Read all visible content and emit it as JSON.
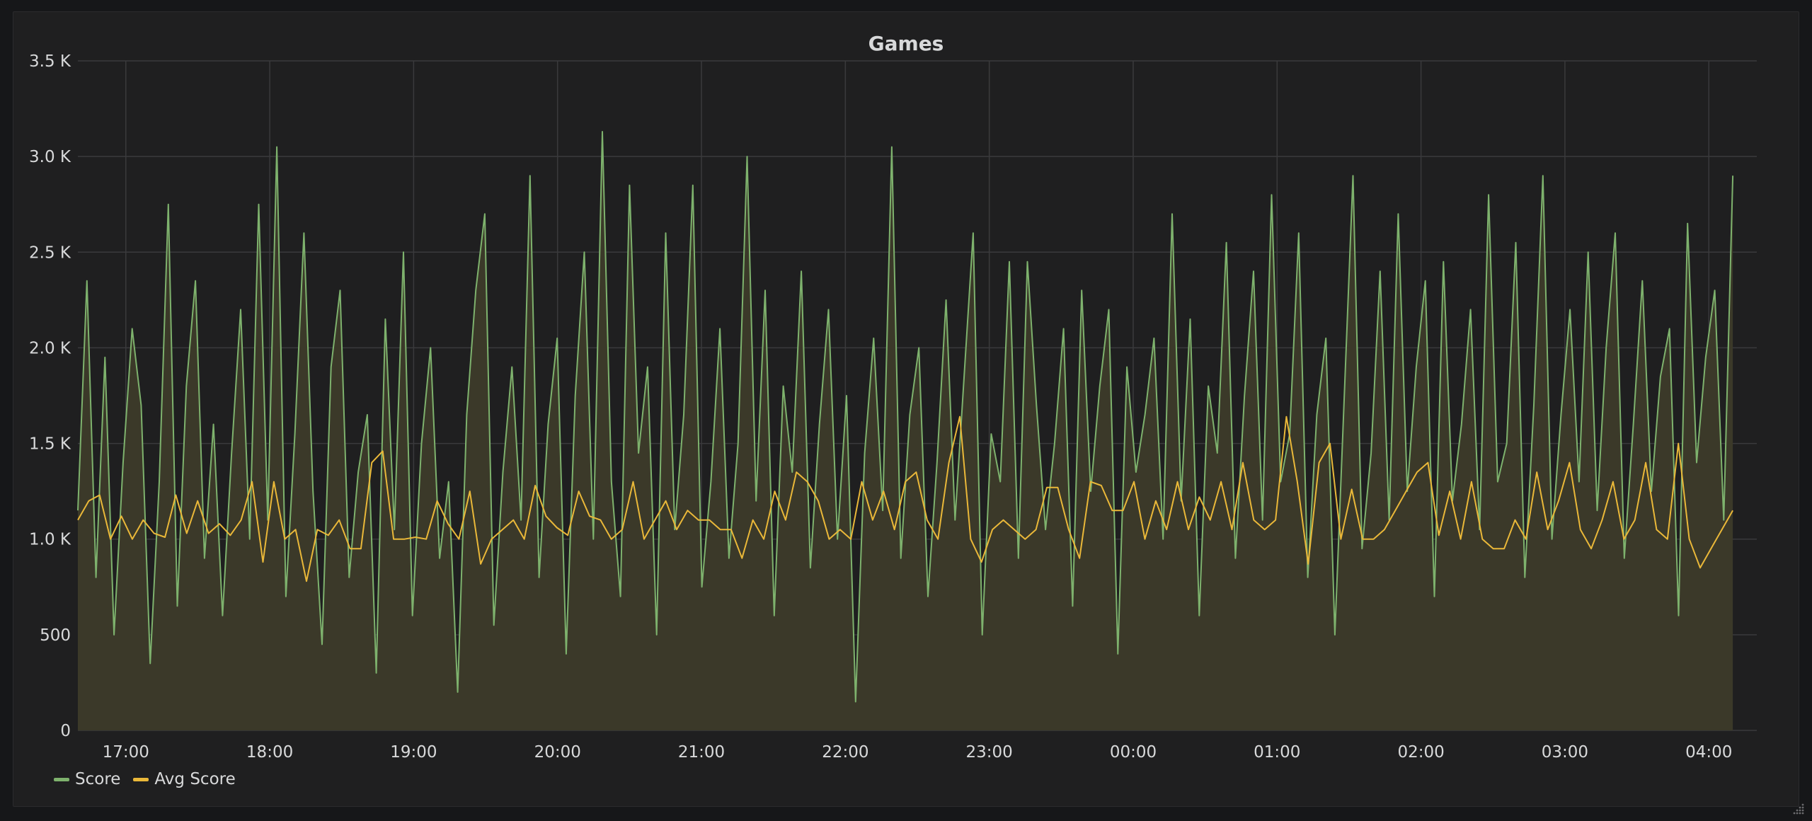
{
  "panel": {
    "title": "Games"
  },
  "colors": {
    "score": "#7eb26d",
    "avg": "#eab839",
    "fill": "#3b3929",
    "grid": "#3a3a3c"
  },
  "icons": {
    "resize": "resize-handle-icon"
  },
  "chart_data": {
    "type": "line",
    "title": "Games",
    "ylim": [
      0,
      3500
    ],
    "yticks": [
      "0",
      "500",
      "1.0 K",
      "1.5 K",
      "2.0 K",
      "2.5 K",
      "3.0 K",
      "3.5 K"
    ],
    "yticks_values": [
      0,
      500,
      1000,
      1500,
      2000,
      2500,
      3000,
      3500
    ],
    "xlim": [
      "16:40",
      "04:20"
    ],
    "xticks": [
      "17:00",
      "18:00",
      "19:00",
      "20:00",
      "21:00",
      "22:00",
      "23:00",
      "00:00",
      "01:00",
      "02:00",
      "03:00",
      "04:00"
    ],
    "grid": true,
    "legend": "bottom-left",
    "series": [
      {
        "name": "Score",
        "kind": "line-with-area",
        "interval": "1 min",
        "approx_values": [
          1150,
          2350,
          800,
          1950,
          500,
          1400,
          2100,
          1700,
          350,
          1300,
          2750,
          650,
          1800,
          2350,
          900,
          1600,
          600,
          1450,
          2200,
          1000,
          2750,
          1100,
          3050,
          700,
          1550,
          2600,
          1250,
          450,
          1900,
          2300,
          800,
          1350,
          1650,
          300,
          2150,
          1050,
          2500,
          600,
          1500,
          2000,
          900,
          1300,
          200,
          1650,
          2300,
          2700,
          550,
          1350,
          1900,
          1100,
          2900,
          800,
          1600,
          2050,
          400,
          1750,
          2500,
          1000,
          3130,
          1300,
          700,
          2850,
          1450,
          1900,
          500,
          2600,
          1050,
          1650,
          2850,
          750,
          1300,
          2100,
          900,
          1500,
          3000,
          1200,
          2300,
          600,
          1800,
          1350,
          2400,
          850,
          1600,
          2200,
          1000,
          1750,
          150,
          1450,
          2050,
          1150,
          3050,
          900,
          1650,
          2000,
          700,
          1400,
          2250,
          1100,
          1850,
          2600,
          500,
          1550,
          1300,
          2450,
          900,
          2450,
          1700,
          1050,
          1500,
          2100,
          650,
          2300,
          1250,
          1800,
          2200,
          400,
          1900,
          1350,
          1650,
          2050,
          1000,
          2700,
          1200,
          2150,
          600,
          1800,
          1450,
          2550,
          900,
          1750,
          2400,
          1100,
          2800,
          1300,
          1550,
          2600,
          800,
          1650,
          2050,
          500,
          1700,
          2900,
          950,
          1450,
          2400,
          1100,
          2700,
          1250,
          1900,
          2350,
          700,
          2450,
          1200,
          1600,
          2200,
          1050,
          2800,
          1300,
          1500,
          2550,
          800,
          1700,
          2900,
          1000,
          1650,
          2200,
          1300,
          2500,
          1150,
          2000,
          2600,
          900,
          1600,
          2350,
          1250,
          1850,
          2100,
          600,
          2650,
          1400,
          1950,
          2300,
          1100,
          2900
        ]
      },
      {
        "name": "Avg Score",
        "kind": "line",
        "interval": "5 min",
        "approx_values": [
          1100,
          1200,
          1230,
          1000,
          1120,
          1000,
          1100,
          1030,
          1010,
          1230,
          1030,
          1200,
          1030,
          1080,
          1020,
          1100,
          1300,
          880,
          1300,
          1000,
          1050,
          780,
          1050,
          1020,
          1100,
          950,
          950,
          1400,
          1460,
          1000,
          1000,
          1010,
          1000,
          1200,
          1080,
          1000,
          1250,
          870,
          1000,
          1050,
          1100,
          1000,
          1280,
          1120,
          1060,
          1020,
          1250,
          1120,
          1100,
          1000,
          1050,
          1300,
          1000,
          1100,
          1200,
          1050,
          1150,
          1100,
          1100,
          1050,
          1050,
          900,
          1100,
          1000,
          1250,
          1100,
          1350,
          1300,
          1200,
          1000,
          1050,
          1000,
          1300,
          1100,
          1250,
          1050,
          1300,
          1350,
          1100,
          1000,
          1400,
          1640,
          1000,
          880,
          1050,
          1100,
          1050,
          1000,
          1050,
          1270,
          1270,
          1050,
          900,
          1300,
          1280,
          1150,
          1150,
          1300,
          1000,
          1200,
          1050,
          1300,
          1050,
          1220,
          1100,
          1300,
          1050,
          1400,
          1100,
          1050,
          1100,
          1640,
          1300,
          870,
          1400,
          1500,
          1000,
          1260,
          1000,
          1000,
          1050,
          1150,
          1250,
          1350,
          1400,
          1020,
          1250,
          1000,
          1300,
          1000,
          950,
          950,
          1100,
          1000,
          1350,
          1050,
          1200,
          1400,
          1050,
          950,
          1100,
          1300,
          1000,
          1100,
          1400,
          1050,
          1000,
          1500,
          1000,
          850,
          950,
          1050,
          1150
        ]
      }
    ]
  }
}
